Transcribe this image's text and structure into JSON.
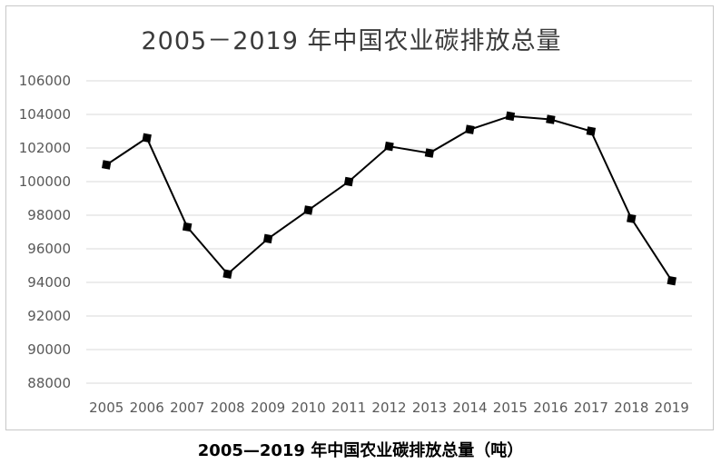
{
  "chart_data": {
    "type": "line",
    "title": "2005－2019 年中国农业碳排放总量",
    "caption": "2005—2019 年中国农业碳排放总量（吨）",
    "categories": [
      "2005",
      "2006",
      "2007",
      "2008",
      "2009",
      "2010",
      "2011",
      "2012",
      "2013",
      "2014",
      "2015",
      "2016",
      "2017",
      "2018",
      "2019"
    ],
    "series": [
      {
        "values": [
          101000,
          102600,
          97300,
          94500,
          96600,
          98300,
          100000,
          102100,
          101700,
          103100,
          103900,
          103700,
          103000,
          97800,
          94100
        ]
      }
    ],
    "ylim": [
      88000,
      106000
    ],
    "yticks": [
      "88000",
      "90000",
      "92000",
      "94000",
      "96000",
      "98000",
      "100000",
      "102000",
      "104000",
      "106000"
    ],
    "grid": true,
    "line_color": "#000000",
    "grid_color": "#d9d9d9",
    "marker": "square"
  }
}
